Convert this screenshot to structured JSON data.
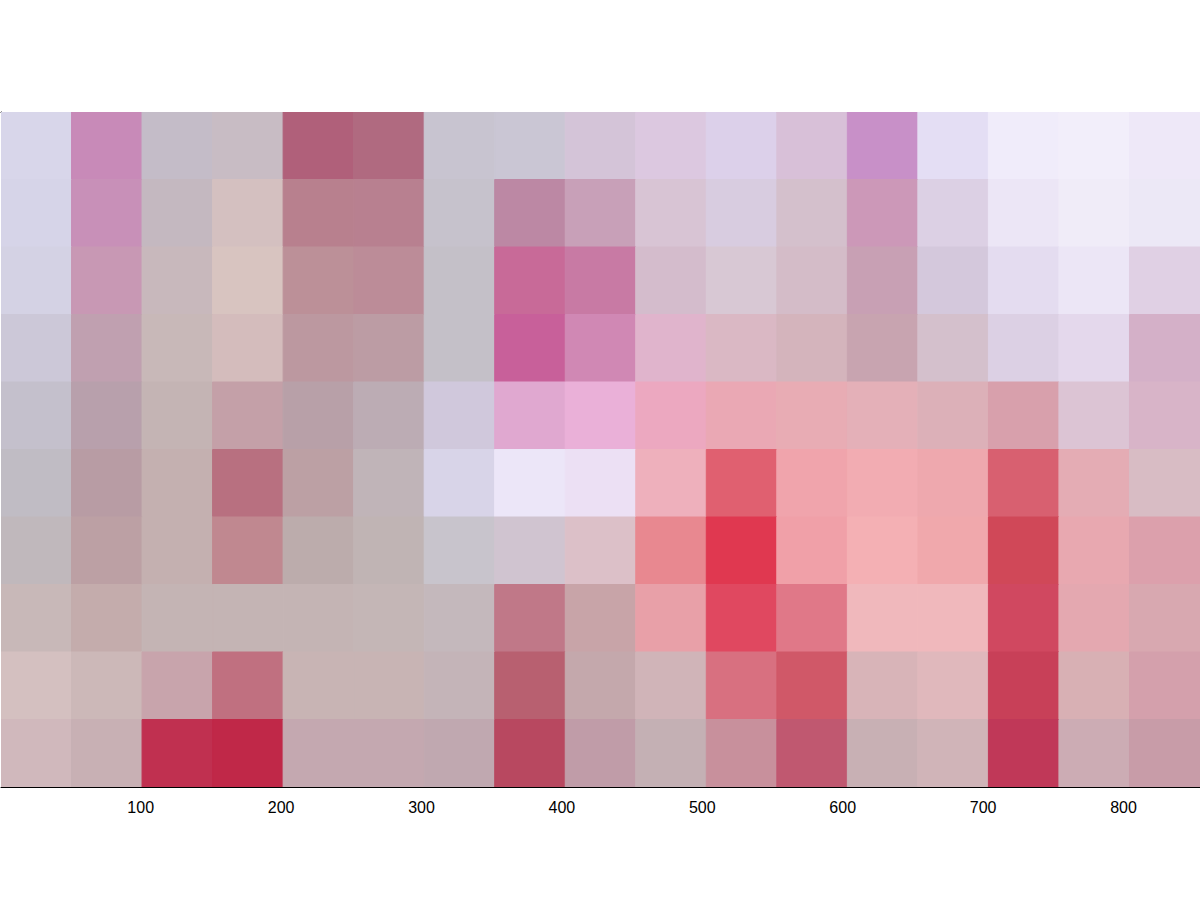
{
  "chart_data": {
    "type": "image",
    "xlim": [
      0.5,
      854.5
    ],
    "ylim": [
      0.5,
      480.5
    ],
    "xticks": [
      100,
      200,
      300,
      400,
      500,
      600,
      700,
      800
    ],
    "yticks": [
      50,
      100,
      150,
      200,
      250,
      300,
      350,
      400,
      450
    ],
    "tick_labels": "x",
    "cells": [
      [
        "#d8d6ea",
        "#c88ab8",
        "#c4bcc8",
        "#c8bcc4",
        "#b0607a",
        "#b06a80",
        "#c8c4d0",
        "#cac6d4",
        "#d4c4d8",
        "#dcc8e0",
        "#dcd0ea",
        "#d8c0d8",
        "#c890c8",
        "#e4def4",
        "#f0ecfa",
        "#f2eefa",
        "#eee8f8"
      ],
      [
        "#d6d4e8",
        "#c890b8",
        "#c4b8c0",
        "#d4c0c0",
        "#b8808e",
        "#b88090",
        "#c6c2cc",
        "#bc88a4",
        "#c8a0b8",
        "#d8c4d4",
        "#d8cce0",
        "#d4c0cc",
        "#cc98b8",
        "#dcd0e4",
        "#ece6f6",
        "#f0ecf8",
        "#ece8f6"
      ],
      [
        "#d4d2e4",
        "#c898b4",
        "#c8b8bc",
        "#d8c4c0",
        "#bc9098",
        "#bc8c98",
        "#c4c0c8",
        "#c86a98",
        "#c87aa4",
        "#d4bccc",
        "#d8c8d4",
        "#d4bcc8",
        "#c8a0b4",
        "#d4c8dc",
        "#e4dcf0",
        "#ece6f6",
        "#e0d0e4"
      ],
      [
        "#ccc8d8",
        "#c0a0b0",
        "#c8b8b8",
        "#d4bcbc",
        "#bc98a0",
        "#bc9ca4",
        "#c4c0c8",
        "#c8609a",
        "#d088b4",
        "#e0b4cc",
        "#dab8c4",
        "#d4b4bc",
        "#c8a4b0",
        "#d4c0cc",
        "#dcd0e4",
        "#e4d8ec",
        "#d4b0c8"
      ],
      [
        "#c4c0cc",
        "#b8a0ac",
        "#c4b4b4",
        "#c4a0a8",
        "#b8a0a8",
        "#bcacb4",
        "#d0c8dc",
        "#e0a8d0",
        "#eab0d8",
        "#eca8c0",
        "#eaa8b4",
        "#e8acb4",
        "#e4b0b8",
        "#dcb0b8",
        "#d8a0ac",
        "#dcc4d4",
        "#d8b4c8"
      ],
      [
        "#c0bcc4",
        "#b89ca4",
        "#c4b0b0",
        "#b87080",
        "#bca0a4",
        "#c0b4b8",
        "#d8d4e8",
        "#ece6f8",
        "#ece0f4",
        "#eeb0bc",
        "#e06070",
        "#f0a4ac",
        "#f2acb2",
        "#eea8ae",
        "#d86070",
        "#e4acb4",
        "#d8bcc4"
      ],
      [
        "#c0b8bc",
        "#bca0a4",
        "#c4b0b0",
        "#c08890",
        "#bcacac",
        "#c0b4b4",
        "#c8c4cc",
        "#d0c4d0",
        "#dcc0c8",
        "#e88890",
        "#e03850",
        "#f0a0a8",
        "#f4b0b4",
        "#f0a8ac",
        "#d04858",
        "#e8a8b0",
        "#dca0ac"
      ],
      [
        "#c8b8b8",
        "#c4acac",
        "#c4b4b4",
        "#c4b4b4",
        "#c4b4b4",
        "#c4b6b6",
        "#c4b8bc",
        "#c07888",
        "#c8a4a8",
        "#e8a0a8",
        "#e04860",
        "#e07888",
        "#f0b8bc",
        "#f0b8bc",
        "#d04860",
        "#e4a8b0",
        "#d8a8b0"
      ],
      [
        "#d4c0c0",
        "#ccb8b8",
        "#c8a4ac",
        "#c07080",
        "#c8b4b4",
        "#c8b4b4",
        "#c4b4b8",
        "#b86070",
        "#c4a8ac",
        "#d0b4b8",
        "#d87080",
        "#d05868",
        "#d8b4b8",
        "#e0b8bc",
        "#c84058",
        "#d8b0b4",
        "#d4a0ac"
      ],
      [
        "#d0b8bc",
        "#c8b0b4",
        "#c03050",
        "#c02848",
        "#c4a8b0",
        "#c4a8b0",
        "#c0a8b0",
        "#b84860",
        "#c09ca8",
        "#c4b0b4",
        "#c8909c",
        "#c05870",
        "#c8b0b4",
        "#d0b4b8",
        "#c03858",
        "#ccacb4",
        "#c89ca8"
      ]
    ]
  }
}
